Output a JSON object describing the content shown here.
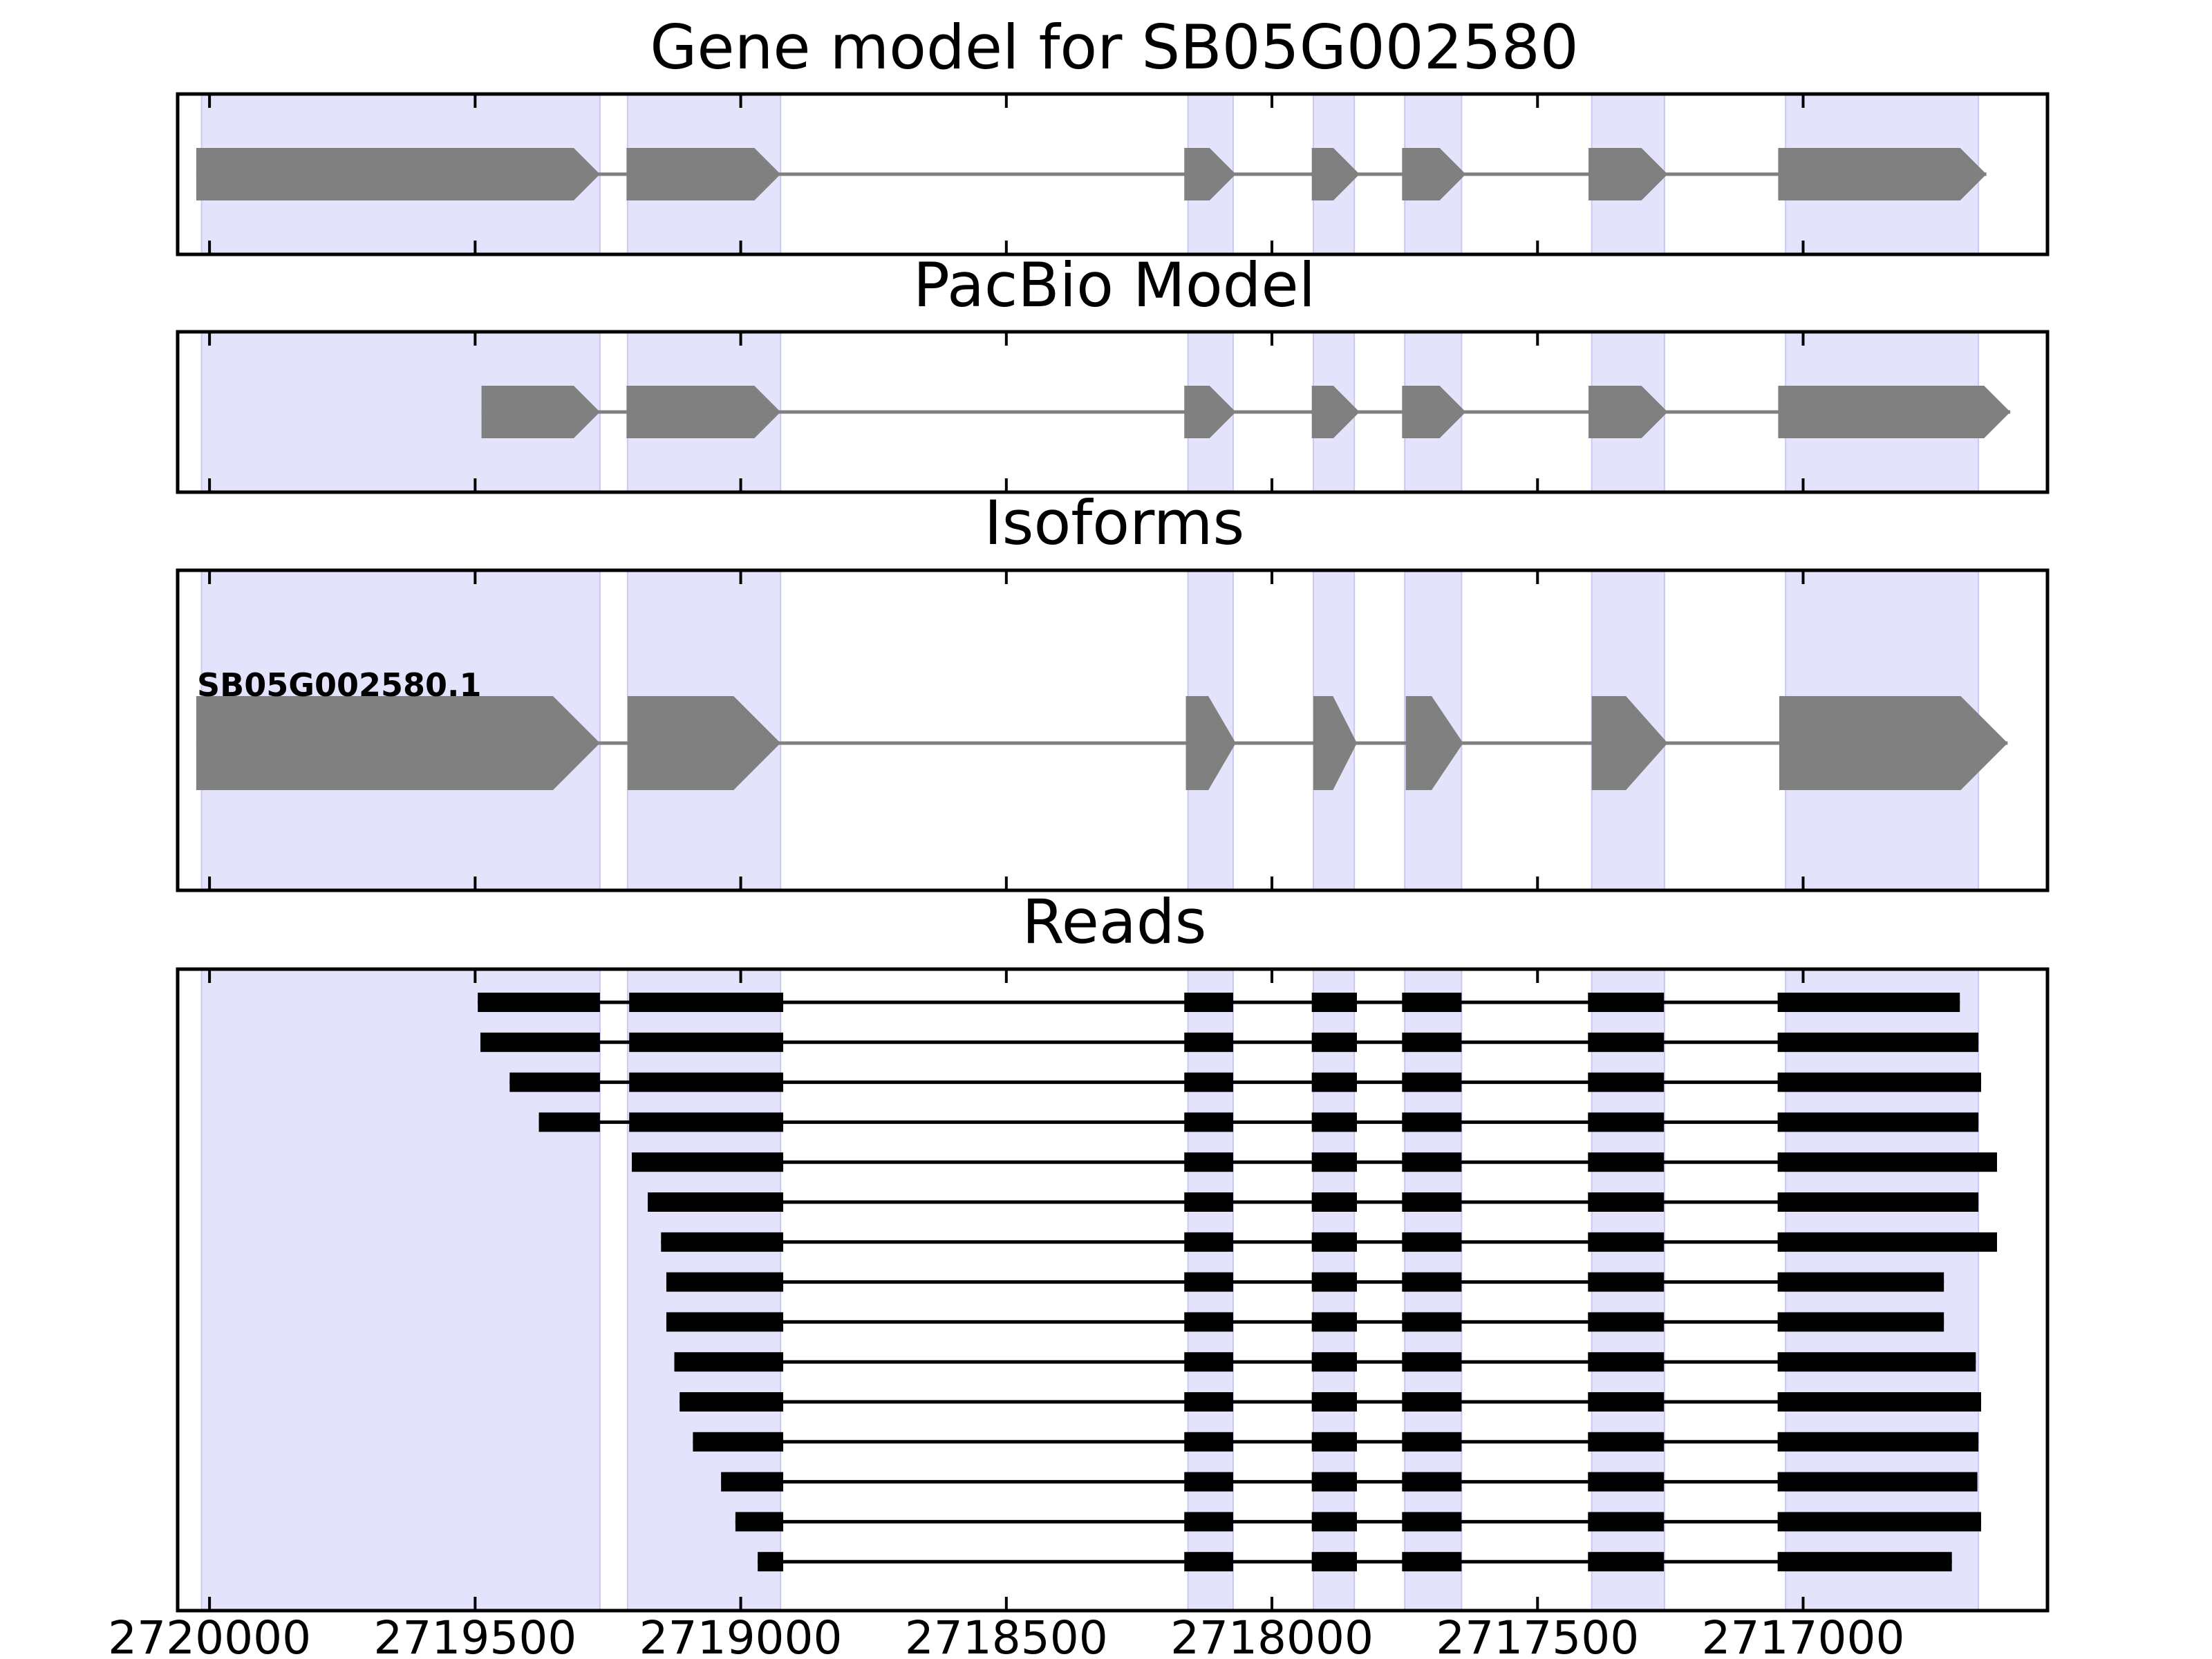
{
  "chart_data": {
    "type": "gene_model",
    "x_axis": {
      "reversed": true,
      "xlim": [
        2720060,
        2716540
      ],
      "ticks": [
        2720000,
        2719500,
        2719000,
        2718500,
        2718000,
        2717500,
        2717000
      ],
      "tick_labels": [
        "2720000",
        "2719500",
        "2719000",
        "2718500",
        "2718000",
        "2717500",
        "2717000"
      ]
    },
    "highlight_color": "#e3e3fc",
    "feature_color": "#808080",
    "read_color": "#000000",
    "exon_regions": [
      [
        2720015,
        2719265
      ],
      [
        2719213,
        2718925
      ],
      [
        2718158,
        2718073
      ],
      [
        2717922,
        2717845
      ],
      [
        2717750,
        2717643
      ],
      [
        2717398,
        2717261
      ],
      [
        2717033,
        2716670
      ]
    ],
    "panels": [
      {
        "title": "Gene model for SB05G002580",
        "label": "",
        "blocks": [
          [
            2720025,
            2719265
          ],
          [
            2719215,
            2718925
          ],
          [
            2718165,
            2718068
          ],
          [
            2717925,
            2717835
          ],
          [
            2717755,
            2717635
          ],
          [
            2717404,
            2717255
          ],
          [
            2717047,
            2716655
          ]
        ]
      },
      {
        "title": "PacBio Model",
        "label": "",
        "blocks": [
          [
            2719488,
            2719265
          ],
          [
            2719215,
            2718925
          ],
          [
            2718165,
            2718068
          ],
          [
            2717925,
            2717835
          ],
          [
            2717755,
            2717635
          ],
          [
            2717404,
            2717255
          ],
          [
            2717047,
            2716610
          ]
        ]
      },
      {
        "title": "Isoforms",
        "label": "SB05G002580.1",
        "blocks": [
          [
            2720025,
            2719265
          ],
          [
            2719213,
            2718925
          ],
          [
            2718162,
            2718068
          ],
          [
            2717922,
            2717840
          ],
          [
            2717748,
            2717640
          ],
          [
            2717398,
            2717255
          ],
          [
            2717045,
            2716615
          ]
        ]
      }
    ],
    "reads_title": "Reads",
    "reads": [
      [
        [
          2719495,
          2719265
        ],
        [
          2719210,
          2718920
        ],
        [
          2718165,
          2718073
        ],
        [
          2717925,
          2717840
        ],
        [
          2717755,
          2717643
        ],
        [
          2717405,
          2717262
        ],
        [
          2717048,
          2716705
        ]
      ],
      [
        [
          2719490,
          2719265
        ],
        [
          2719210,
          2718920
        ],
        [
          2718165,
          2718073
        ],
        [
          2717925,
          2717840
        ],
        [
          2717755,
          2717643
        ],
        [
          2717405,
          2717262
        ],
        [
          2717048,
          2716670
        ]
      ],
      [
        [
          2719435,
          2719265
        ],
        [
          2719210,
          2718920
        ],
        [
          2718165,
          2718073
        ],
        [
          2717925,
          2717840
        ],
        [
          2717755,
          2717643
        ],
        [
          2717405,
          2717262
        ],
        [
          2717048,
          2716665
        ]
      ],
      [
        [
          2719380,
          2719265
        ],
        [
          2719210,
          2718920
        ],
        [
          2718165,
          2718073
        ],
        [
          2717925,
          2717840
        ],
        [
          2717755,
          2717643
        ],
        [
          2717405,
          2717262
        ],
        [
          2717048,
          2716670
        ]
      ],
      [
        [
          2719205,
          2718920
        ],
        [
          2718165,
          2718073
        ],
        [
          2717925,
          2717840
        ],
        [
          2717755,
          2717643
        ],
        [
          2717405,
          2717262
        ],
        [
          2717048,
          2716635
        ]
      ],
      [
        [
          2719175,
          2718920
        ],
        [
          2718165,
          2718073
        ],
        [
          2717925,
          2717840
        ],
        [
          2717755,
          2717643
        ],
        [
          2717405,
          2717262
        ],
        [
          2717048,
          2716670
        ]
      ],
      [
        [
          2719150,
          2718920
        ],
        [
          2718165,
          2718073
        ],
        [
          2717925,
          2717840
        ],
        [
          2717755,
          2717643
        ],
        [
          2717405,
          2717262
        ],
        [
          2717048,
          2716635
        ]
      ],
      [
        [
          2719140,
          2718920
        ],
        [
          2718165,
          2718073
        ],
        [
          2717925,
          2717840
        ],
        [
          2717755,
          2717643
        ],
        [
          2717405,
          2717262
        ],
        [
          2717048,
          2716735
        ]
      ],
      [
        [
          2719140,
          2718920
        ],
        [
          2718165,
          2718073
        ],
        [
          2717925,
          2717840
        ],
        [
          2717755,
          2717643
        ],
        [
          2717405,
          2717262
        ],
        [
          2717048,
          2716735
        ]
      ],
      [
        [
          2719125,
          2718920
        ],
        [
          2718165,
          2718073
        ],
        [
          2717925,
          2717840
        ],
        [
          2717755,
          2717643
        ],
        [
          2717405,
          2717262
        ],
        [
          2717048,
          2716675
        ]
      ],
      [
        [
          2719115,
          2718920
        ],
        [
          2718165,
          2718073
        ],
        [
          2717925,
          2717840
        ],
        [
          2717755,
          2717643
        ],
        [
          2717405,
          2717262
        ],
        [
          2717048,
          2716665
        ]
      ],
      [
        [
          2719090,
          2718920
        ],
        [
          2718165,
          2718073
        ],
        [
          2717925,
          2717840
        ],
        [
          2717755,
          2717643
        ],
        [
          2717405,
          2717262
        ],
        [
          2717048,
          2716670
        ]
      ],
      [
        [
          2719037,
          2718920
        ],
        [
          2718165,
          2718073
        ],
        [
          2717925,
          2717840
        ],
        [
          2717755,
          2717643
        ],
        [
          2717405,
          2717262
        ],
        [
          2717048,
          2716672
        ]
      ],
      [
        [
          2719010,
          2718920
        ],
        [
          2718165,
          2718073
        ],
        [
          2717925,
          2717840
        ],
        [
          2717755,
          2717643
        ],
        [
          2717405,
          2717262
        ],
        [
          2717048,
          2716665
        ]
      ],
      [
        [
          2718968,
          2718920
        ],
        [
          2718165,
          2718073
        ],
        [
          2717925,
          2717840
        ],
        [
          2717755,
          2717643
        ],
        [
          2717405,
          2717262
        ],
        [
          2717048,
          2716720
        ]
      ]
    ]
  }
}
